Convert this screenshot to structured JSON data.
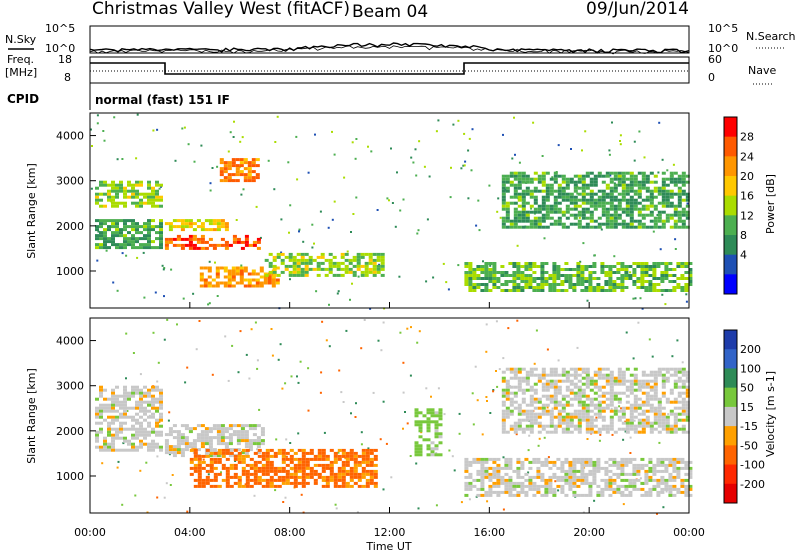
{
  "header": {
    "title": "Christmas Valley West (fitACF)",
    "beam": "Beam 04",
    "date": "09/Jun/2014"
  },
  "top_panels": {
    "nsky_label": "N.Sky",
    "nsky_ticks": [
      "10^5",
      "10^0"
    ],
    "nsearch_label": "N.Search",
    "nsearch_ticks": [
      "10^5",
      "10^0"
    ],
    "freq_label_1": "Freq.",
    "freq_label_2": "[MHz]",
    "freq_ticks": [
      "18",
      "8"
    ],
    "nave_label": "Nave",
    "nave_ticks": [
      "60",
      "0"
    ],
    "cpid_label": "CPID",
    "cpid_value": "normal (fast) 151 IF"
  },
  "axes": {
    "xlabel": "Time UT",
    "x_ticks": [
      "00:00",
      "04:00",
      "08:00",
      "12:00",
      "16:00",
      "20:00",
      "00:00"
    ],
    "ylabel": "Slant Range [km]",
    "y_ticks": [
      "1000",
      "2000",
      "3000",
      "4000"
    ]
  },
  "power_scale": {
    "label": "Power [dB]",
    "ticks": [
      "28",
      "24",
      "20",
      "16",
      "12",
      "8",
      "4"
    ],
    "colors": [
      "#ff0000",
      "#ff5a00",
      "#ff9600",
      "#ffc800",
      "#aadc00",
      "#4caf50",
      "#2e8b57",
      "#1e50b4",
      "#0000ff"
    ]
  },
  "velocity_scale": {
    "label": "Velocity [m s-1]",
    "ticks": [
      "200",
      "100",
      "50",
      "15",
      "-15",
      "-50",
      "-100",
      "-200"
    ],
    "colors": [
      "#1e3caa",
      "#3264c8",
      "#2e8b57",
      "#78c83c",
      "#c8c8c8",
      "#ffa000",
      "#ff6400",
      "#ff2800",
      "#e60000"
    ]
  },
  "chart_data": [
    {
      "type": "line",
      "title": "N.Sky / N.Search",
      "x": [
        "00:00",
        "04:00",
        "08:00",
        "12:00",
        "16:00",
        "20:00",
        "24:00"
      ],
      "series": [
        {
          "name": "N.Sky",
          "values": [
            1,
            1.5,
            2,
            30,
            1.5,
            1,
            1
          ]
        },
        {
          "name": "N.Search",
          "values": [
            0.5,
            0.8,
            1,
            8,
            1,
            0.6,
            0.5
          ]
        }
      ]
    },
    {
      "type": "line",
      "title": "Freq. [MHz] / Nave",
      "x": [
        "00:00",
        "03:00",
        "03:00",
        "15:00",
        "15:00",
        "24:00"
      ],
      "series": [
        {
          "name": "Freq.",
          "values": [
            14,
            14,
            10,
            10,
            14,
            14
          ]
        },
        {
          "name": "Nave",
          "values": [
            23,
            23,
            23,
            23,
            23,
            23
          ]
        }
      ]
    },
    {
      "type": "heatmap",
      "title": "Power [dB]",
      "x_range_hours": [
        0,
        24
      ],
      "y_range_km": [
        180,
        4500
      ],
      "features": [
        {
          "name": "early-band-upper",
          "t_start": 0.2,
          "t_end": 2.9,
          "range_km": [
            2450,
            3000
          ],
          "power_db": 14
        },
        {
          "name": "early-band-lower",
          "t_start": 0.2,
          "t_end": 2.9,
          "range_km": [
            1550,
            2150
          ],
          "power_db": 10
        },
        {
          "name": "strong-echo-1",
          "t_start": 3.0,
          "t_end": 6.8,
          "range_km": [
            1500,
            1800
          ],
          "power_db": 26
        },
        {
          "name": "strong-echo-2",
          "t_start": 3.0,
          "t_end": 5.5,
          "range_km": [
            1900,
            2150
          ],
          "power_db": 18
        },
        {
          "name": "afternoon-patch",
          "t_start": 5.2,
          "t_end": 6.8,
          "range_km": [
            3000,
            3500
          ],
          "power_db": 24
        },
        {
          "name": "low-range-echo",
          "t_start": 4.4,
          "t_end": 7.5,
          "range_km": [
            700,
            1100
          ],
          "power_db": 22
        },
        {
          "name": "evening-band",
          "t_start": 7.0,
          "t_end": 11.8,
          "range_km": [
            900,
            1400
          ],
          "power_db": 14
        },
        {
          "name": "night-band",
          "t_start": 15.0,
          "t_end": 24.0,
          "range_km": [
            600,
            1200
          ],
          "power_db": 12
        },
        {
          "name": "late-upper-band",
          "t_start": 16.5,
          "t_end": 24.0,
          "range_km": [
            2000,
            3200
          ],
          "power_db": 10
        }
      ]
    },
    {
      "type": "heatmap",
      "title": "Velocity [m s-1]",
      "x_range_hours": [
        0,
        24
      ],
      "y_range_km": [
        180,
        4500
      ],
      "features": [
        {
          "name": "early-band",
          "t_start": 0.2,
          "t_end": 2.9,
          "range_km": [
            1600,
            3000
          ],
          "velocity_ms": 0
        },
        {
          "name": "ground-scatter-main",
          "t_start": 3.0,
          "t_end": 7.0,
          "range_km": [
            1450,
            2150
          ],
          "velocity_ms": 0
        },
        {
          "name": "flow-patch",
          "t_start": 4.0,
          "t_end": 11.5,
          "range_km": [
            800,
            1600
          ],
          "velocity_ms": -60
        },
        {
          "name": "green-streak",
          "t_start": 13.0,
          "t_end": 14.0,
          "range_km": [
            1500,
            2500
          ],
          "velocity_ms": 30
        },
        {
          "name": "night-gs",
          "t_start": 15.0,
          "t_end": 24.0,
          "range_km": [
            600,
            1400
          ],
          "velocity_ms": 0
        },
        {
          "name": "late-upper",
          "t_start": 16.5,
          "t_end": 24.0,
          "range_km": [
            2000,
            3400
          ],
          "velocity_ms": 0
        }
      ]
    }
  ]
}
